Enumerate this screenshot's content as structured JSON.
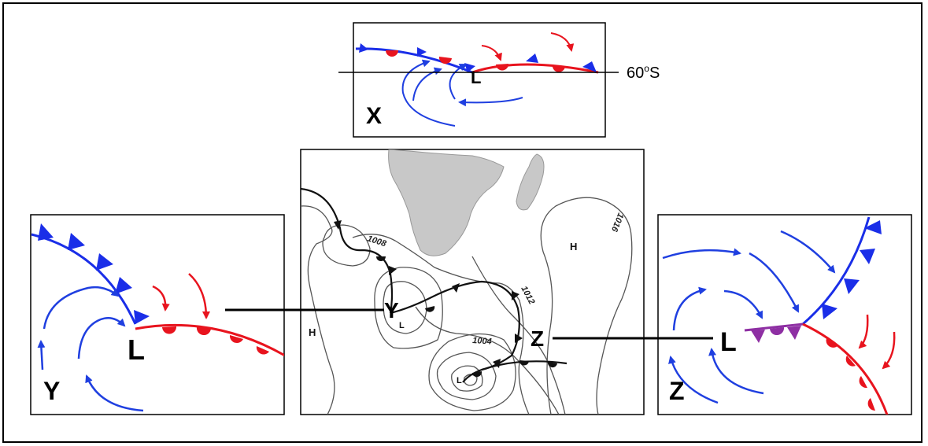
{
  "colors": {
    "cold_front": "#1a2ee8",
    "warm_front": "#e8141e",
    "occluded_front": "#8e2fa3",
    "cold_arrow": "#1f3fe0",
    "warm_arrow": "#e8141e",
    "land": "#c8c8c8",
    "isobar": "#555555"
  },
  "panel_x": {
    "label": "X",
    "low_label": "L",
    "latitude_label": "60",
    "latitude_degree": "o",
    "latitude_hemisphere": "S"
  },
  "panel_y": {
    "label": "Y",
    "low_label": "L"
  },
  "panel_z": {
    "label": "Z",
    "low_label": "L"
  },
  "synoptic_map": {
    "high_left": "H",
    "high_right": "H",
    "low_upper": "L",
    "low_lower": "L",
    "marker_y": "Y",
    "marker_z": "Z",
    "isobar_1008": "1008",
    "isobar_1012": "1012",
    "isobar_1004": "1004",
    "isobar_1016": "1016"
  }
}
